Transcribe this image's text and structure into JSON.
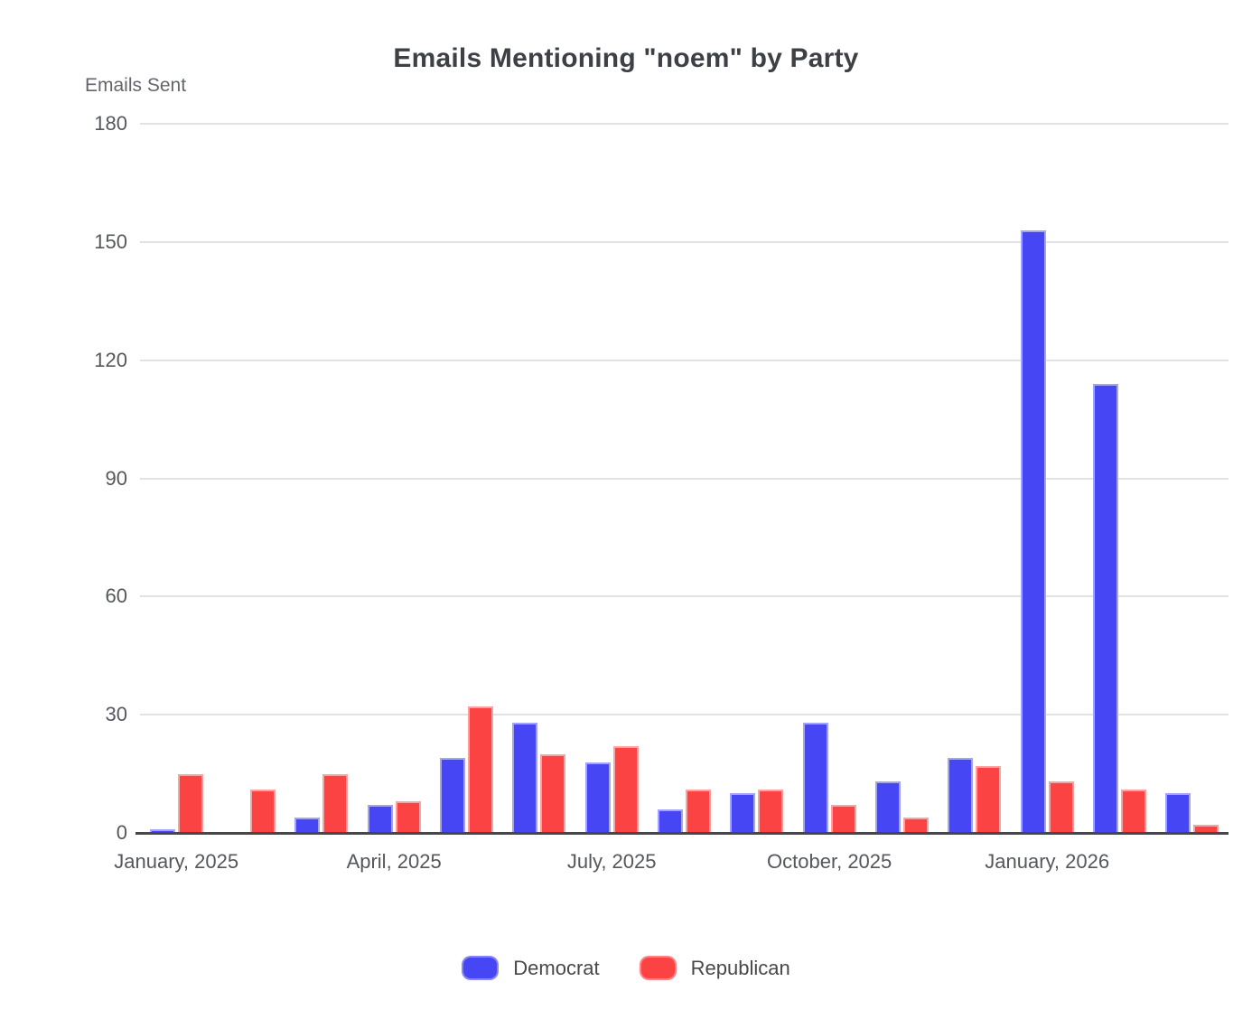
{
  "title": "Emails Mentioning \"noem\" by Party",
  "y_axis_label": "Emails Sent",
  "chart_data": {
    "type": "bar",
    "title": "Emails Mentioning \"noem\" by Party",
    "ylabel": "Emails Sent",
    "xlabel": "",
    "categories": [
      "January, 2025",
      "February, 2025",
      "March, 2025",
      "April, 2025",
      "May, 2025",
      "June, 2025",
      "July, 2025",
      "August, 2025",
      "September, 2025",
      "October, 2025",
      "November, 2025",
      "December, 2025",
      "January, 2026",
      "February, 2026",
      "March, 2026"
    ],
    "x_tick_labels": [
      "January, 2025",
      "April, 2025",
      "July, 2025",
      "October, 2025",
      "January, 2026"
    ],
    "x_tick_every": 3,
    "series": [
      {
        "name": "Democrat",
        "color": "#4646F5",
        "values": [
          1,
          0,
          4,
          7,
          19,
          28,
          18,
          6,
          10,
          28,
          13,
          19,
          153,
          114,
          10
        ]
      },
      {
        "name": "Republican",
        "color": "#FB4343",
        "values": [
          15,
          11,
          15,
          8,
          32,
          20,
          22,
          11,
          11,
          7,
          4,
          17,
          13,
          11,
          2
        ]
      }
    ],
    "y_ticks": [
      0,
      30,
      60,
      90,
      120,
      150,
      180
    ],
    "ylim": [
      0,
      180
    ],
    "grid": true,
    "legend_position": "bottom",
    "colors": {
      "democrat": "#4646F5",
      "republican": "#FB4343",
      "gridline": "#E0E2E8",
      "axis_line": "#46474B",
      "tick_text": "#54575C",
      "title_text": "#3D4045"
    }
  }
}
